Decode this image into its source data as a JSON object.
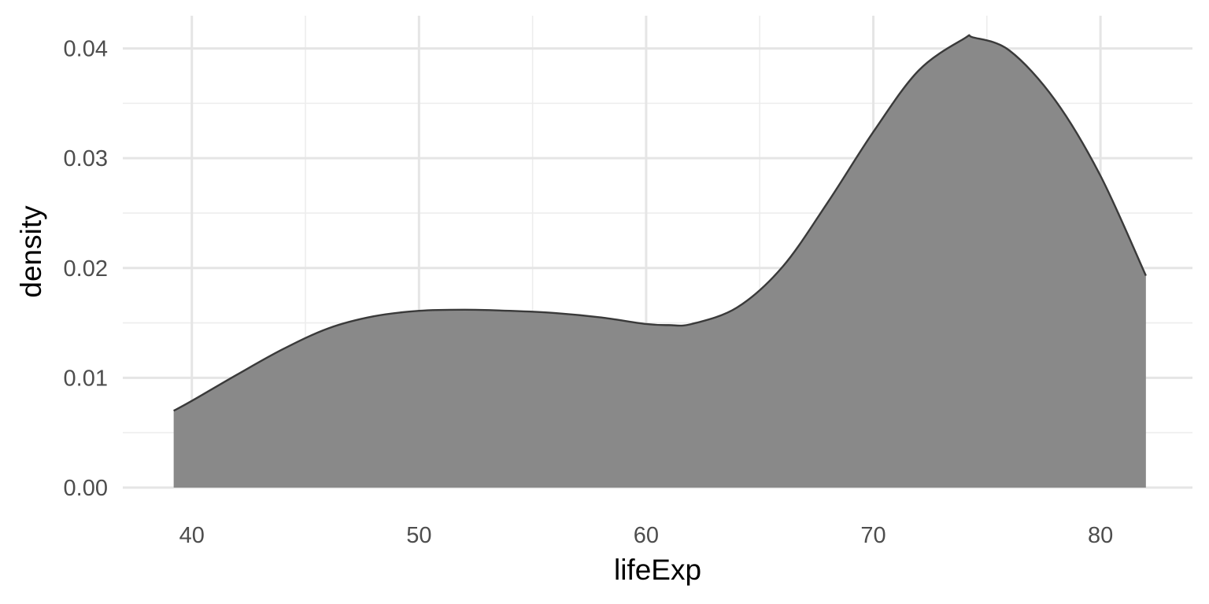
{
  "chart_data": {
    "type": "area",
    "subtype": "density",
    "title": "",
    "xlabel": "lifeExp",
    "ylabel": "density",
    "xlim": [
      36.96,
      84.05
    ],
    "ylim": [
      0,
      0.0409
    ],
    "x_ticks": [
      40,
      50,
      60,
      70,
      80
    ],
    "y_ticks": [
      0.0,
      0.01,
      0.02,
      0.03,
      0.04
    ],
    "y_tick_labels": [
      "0.00",
      "0.01",
      "0.02",
      "0.03",
      "0.04"
    ],
    "x_minor_ticks": [
      45,
      55,
      65,
      75
    ],
    "y_minor_ticks": [
      0.005,
      0.015,
      0.025,
      0.035
    ],
    "grid": true,
    "legend": "none",
    "fill_color": "#898989",
    "line_color": "#3a3a3a",
    "series": [
      {
        "x": [
          39.2,
          40,
          42,
          44,
          46,
          48,
          50,
          52,
          54,
          56,
          58,
          60,
          61,
          62,
          64,
          66,
          68,
          70,
          72,
          74,
          74.4,
          76,
          78,
          80,
          82.0
        ],
        "y": [
          0.007,
          0.0079,
          0.0103,
          0.0126,
          0.0145,
          0.0156,
          0.0161,
          0.0162,
          0.0161,
          0.0159,
          0.0155,
          0.0149,
          0.0148,
          0.0149,
          0.0164,
          0.0201,
          0.026,
          0.0324,
          0.038,
          0.0409,
          0.041,
          0.0398,
          0.0353,
          0.0284,
          0.0193
        ]
      }
    ]
  }
}
